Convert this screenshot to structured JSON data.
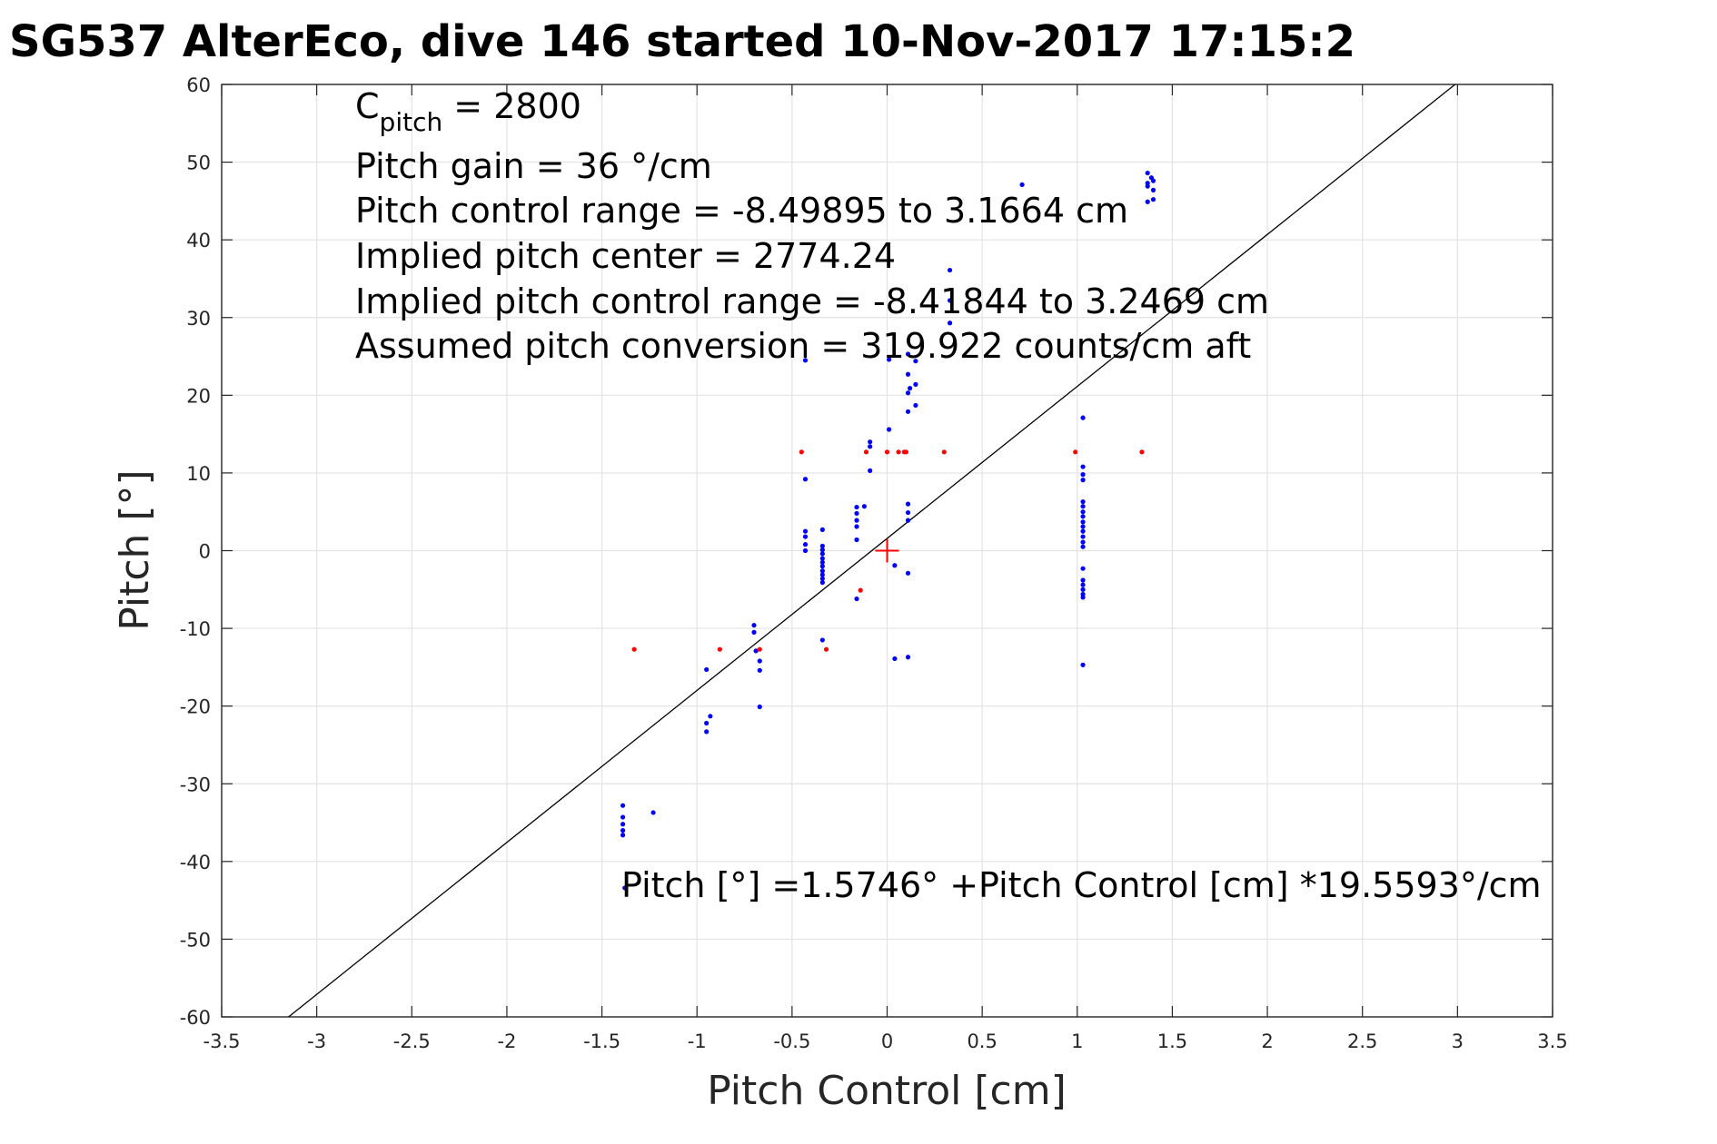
{
  "chart_data": {
    "type": "scatter",
    "title": "SG537 AlterEco, dive 146 started 10-Nov-2017 17:15:2",
    "xlabel": "Pitch Control [cm]",
    "ylabel": "Pitch [°]",
    "xlim": [
      -3.5,
      3.5
    ],
    "ylim": [
      -60,
      60
    ],
    "xticks": [
      -3.5,
      -3,
      -2.5,
      -2,
      -1.5,
      -1,
      -0.5,
      0,
      0.5,
      1,
      1.5,
      2,
      2.5,
      3,
      3.5
    ],
    "yticks": [
      -60,
      -50,
      -40,
      -30,
      -20,
      -10,
      0,
      10,
      20,
      30,
      40,
      50,
      60
    ],
    "xtick_labels": [
      "-3.5",
      "-3",
      "-2.5",
      "-2",
      "-1.5",
      "-1",
      "-0.5",
      "0",
      "0.5",
      "1",
      "1.5",
      "2",
      "2.5",
      "3",
      "3.5"
    ],
    "ytick_labels": [
      "-60",
      "-50",
      "-40",
      "-30",
      "-20",
      "-10",
      "0",
      "10",
      "20",
      "30",
      "40",
      "50",
      "60"
    ],
    "grid": true,
    "fit_line": {
      "intercept": 1.5746,
      "slope": 19.5593,
      "color": "#000000"
    },
    "center_marker": {
      "x": 0,
      "y": 0,
      "color": "#ff0000"
    },
    "annotations": {
      "c_pitch_main": "C",
      "c_pitch_sub": "pitch",
      "c_pitch_value": " = 2800",
      "pitch_gain": "Pitch gain = 36 °/cm",
      "control_range": "Pitch control range = -8.49895 to 3.1664 cm",
      "implied_center": "Implied pitch center = 2774.24",
      "implied_range": "Implied pitch control range = -8.41844 to 3.2469 cm",
      "conversion": "Assumed pitch conversion = 319.922 counts/cm aft",
      "fit_equation": "Pitch [°] =1.5746° +Pitch Control [cm] *19.5593°/cm"
    },
    "series": [
      {
        "color": "#0000ff",
        "points": [
          [
            -1.39,
            -32.8
          ],
          [
            -1.39,
            -34.3
          ],
          [
            -1.39,
            -35.2
          ],
          [
            -1.39,
            -36.0
          ],
          [
            -1.39,
            -36.6
          ],
          [
            -1.38,
            -43.4
          ],
          [
            -1.23,
            -33.7
          ],
          [
            -0.95,
            -15.3
          ],
          [
            -0.95,
            -22.2
          ],
          [
            -0.95,
            -23.3
          ],
          [
            -0.93,
            -21.3
          ],
          [
            -0.7,
            -9.6
          ],
          [
            -0.7,
            -10.5
          ],
          [
            -0.69,
            -12.9
          ],
          [
            -0.67,
            -14.2
          ],
          [
            -0.67,
            -15.4
          ],
          [
            -0.67,
            -20.1
          ],
          [
            -0.43,
            24.5
          ],
          [
            -0.43,
            9.2
          ],
          [
            -0.43,
            2.5
          ],
          [
            -0.43,
            1.8
          ],
          [
            -0.43,
            0.8
          ],
          [
            -0.43,
            0.0
          ],
          [
            -0.34,
            2.7
          ],
          [
            -0.34,
            0.6
          ],
          [
            -0.34,
            0.1
          ],
          [
            -0.34,
            -0.4
          ],
          [
            -0.34,
            -1.0
          ],
          [
            -0.34,
            -1.5
          ],
          [
            -0.34,
            -2.0
          ],
          [
            -0.34,
            -2.6
          ],
          [
            -0.34,
            -3.1
          ],
          [
            -0.34,
            -3.6
          ],
          [
            -0.34,
            -4.1
          ],
          [
            -0.34,
            -11.5
          ],
          [
            -0.16,
            5.6
          ],
          [
            -0.16,
            4.8
          ],
          [
            -0.16,
            3.9
          ],
          [
            -0.16,
            3.1
          ],
          [
            -0.16,
            1.4
          ],
          [
            -0.16,
            -6.2
          ],
          [
            -0.12,
            5.7
          ],
          [
            -0.09,
            14.0
          ],
          [
            -0.09,
            13.4
          ],
          [
            -0.09,
            10.3
          ],
          [
            0.01,
            24.6
          ],
          [
            0.01,
            15.6
          ],
          [
            0.04,
            -1.9
          ],
          [
            0.04,
            -13.9
          ],
          [
            0.11,
            25.3
          ],
          [
            0.11,
            22.7
          ],
          [
            0.11,
            20.3
          ],
          [
            0.11,
            17.9
          ],
          [
            0.11,
            6.0
          ],
          [
            0.11,
            4.9
          ],
          [
            0.11,
            3.9
          ],
          [
            0.11,
            -2.9
          ],
          [
            0.11,
            -13.7
          ],
          [
            0.12,
            20.9
          ],
          [
            0.15,
            24.4
          ],
          [
            0.15,
            21.4
          ],
          [
            0.15,
            18.7
          ],
          [
            0.33,
            36.1
          ],
          [
            0.33,
            32.2
          ],
          [
            0.33,
            29.3
          ],
          [
            0.71,
            47.1
          ],
          [
            1.03,
            17.1
          ],
          [
            1.03,
            10.8
          ],
          [
            1.03,
            9.8
          ],
          [
            1.03,
            9.1
          ],
          [
            1.03,
            6.3
          ],
          [
            1.03,
            5.7
          ],
          [
            1.03,
            5.0
          ],
          [
            1.03,
            4.4
          ],
          [
            1.03,
            3.7
          ],
          [
            1.03,
            3.1
          ],
          [
            1.03,
            2.5
          ],
          [
            1.03,
            1.8
          ],
          [
            1.03,
            1.1
          ],
          [
            1.03,
            0.5
          ],
          [
            1.03,
            -2.3
          ],
          [
            1.03,
            -3.8
          ],
          [
            1.03,
            -4.4
          ],
          [
            1.03,
            -5.0
          ],
          [
            1.03,
            -5.6
          ],
          [
            1.03,
            -6.0
          ],
          [
            1.03,
            -14.7
          ],
          [
            1.37,
            48.6
          ],
          [
            1.37,
            47.3
          ],
          [
            1.37,
            46.9
          ],
          [
            1.37,
            44.9
          ],
          [
            1.39,
            48.0
          ],
          [
            1.4,
            47.6
          ],
          [
            1.4,
            46.4
          ],
          [
            1.4,
            45.2
          ]
        ]
      },
      {
        "color": "#ff0000",
        "points": [
          [
            -1.33,
            -12.7
          ],
          [
            -0.88,
            -12.7
          ],
          [
            -0.67,
            -12.7
          ],
          [
            -0.32,
            -12.7
          ],
          [
            -0.14,
            -5.1
          ],
          [
            -0.45,
            12.7
          ],
          [
            -0.11,
            12.7
          ],
          [
            0.0,
            12.7
          ],
          [
            0.06,
            12.7
          ],
          [
            0.09,
            12.7
          ],
          [
            0.1,
            12.7
          ],
          [
            0.3,
            12.7
          ],
          [
            0.99,
            12.7
          ],
          [
            1.34,
            12.7
          ]
        ]
      }
    ]
  }
}
